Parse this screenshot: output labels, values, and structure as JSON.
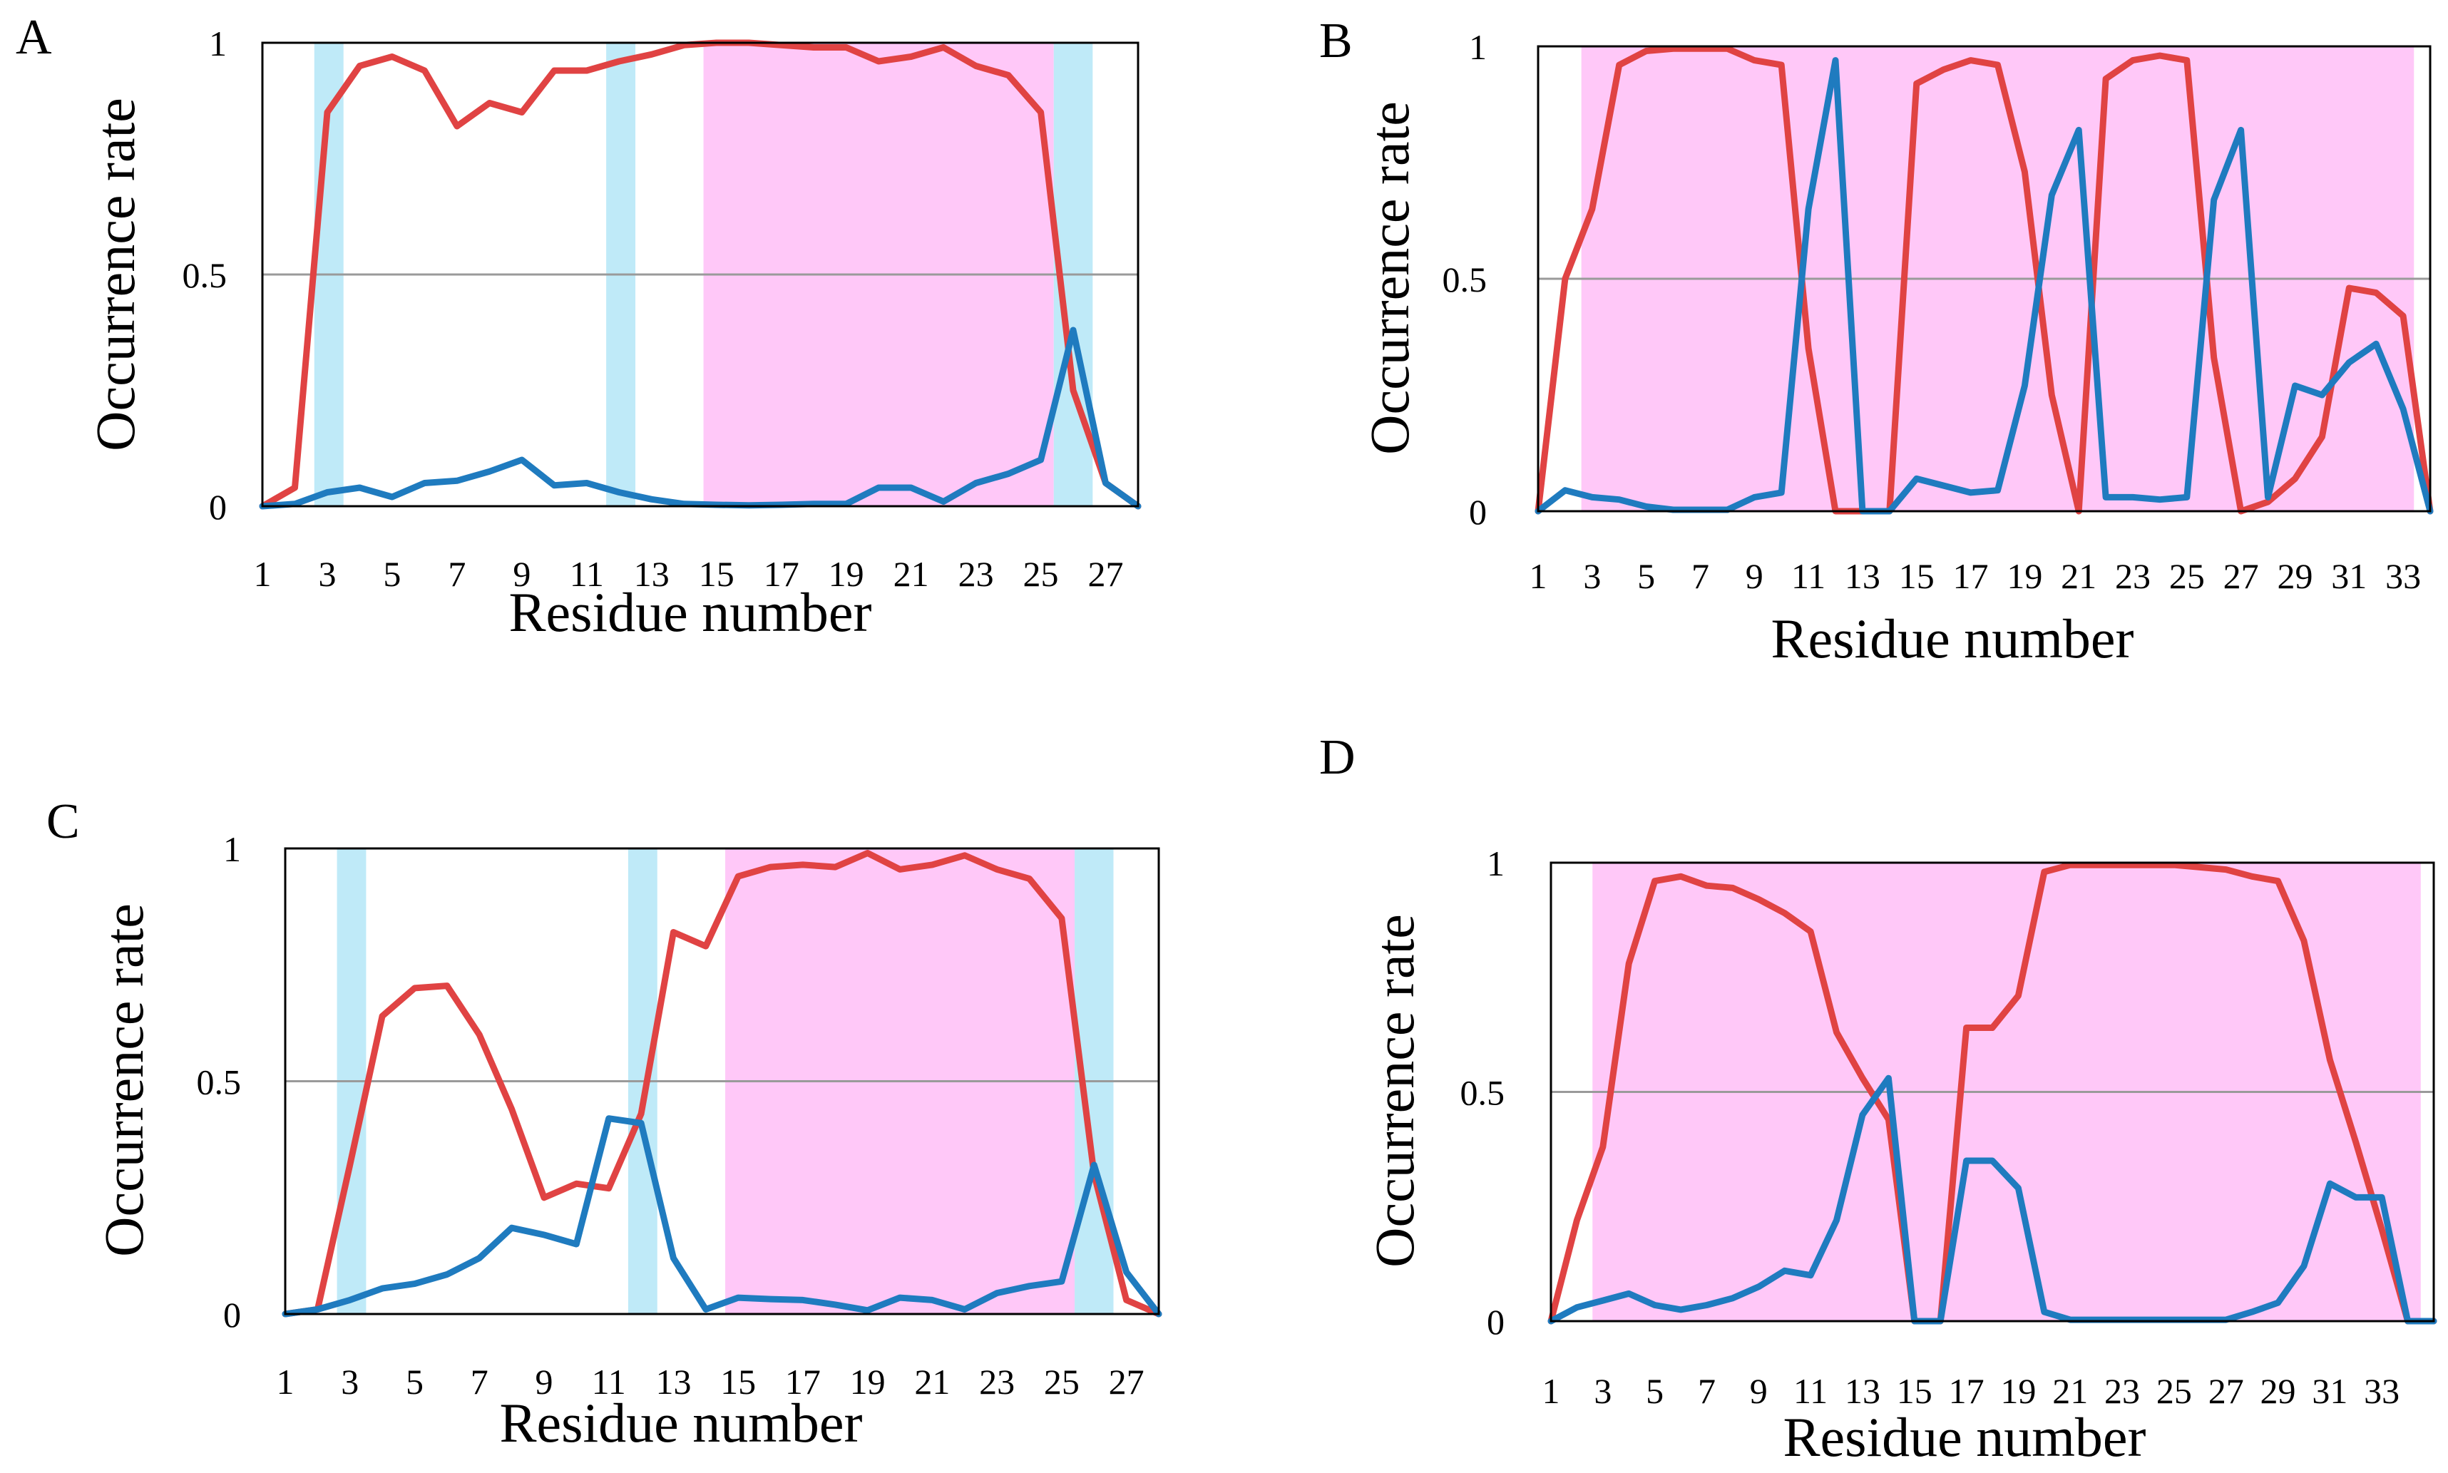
{
  "figure": {
    "colors": {
      "red_series": "#e04343",
      "blue_series": "#1f7bbf",
      "pink_band": "#ffc8f8",
      "cyan_band": "#bfeaf8",
      "gridline": "#9a9a9a",
      "frame": "#000000"
    }
  },
  "chart_data": [
    {
      "panel": "A",
      "type": "line",
      "title": "",
      "xlabel": "Residue number",
      "ylabel": "Occurrence rate",
      "x_range": [
        1,
        28
      ],
      "ylim": [
        0,
        1
      ],
      "yticks": [
        0,
        0.5,
        1
      ],
      "ytick_labels": [
        "0",
        "0.5",
        "1"
      ],
      "xticks": [
        1,
        3,
        5,
        7,
        9,
        11,
        13,
        15,
        17,
        19,
        21,
        23,
        25,
        27
      ],
      "gridlines_at": [
        0.5
      ],
      "bands": [
        {
          "color": "cyan",
          "from": 2.6,
          "to": 3.5
        },
        {
          "color": "cyan",
          "from": 11.6,
          "to": 12.5
        },
        {
          "color": "pink",
          "from": 14.6,
          "to": 25.4
        },
        {
          "color": "cyan",
          "from": 25.4,
          "to": 26.6
        }
      ],
      "series": [
        {
          "name": "red",
          "color": "red_series",
          "values": [
            0.0,
            0.04,
            0.85,
            0.95,
            0.97,
            0.94,
            0.82,
            0.87,
            0.85,
            0.94,
            0.94,
            0.96,
            0.975,
            0.995,
            1.0,
            1.0,
            0.995,
            0.99,
            0.99,
            0.96,
            0.97,
            0.99,
            0.95,
            0.93,
            0.85,
            0.25,
            0.05,
            0.0
          ]
        },
        {
          "name": "blue",
          "color": "blue_series",
          "values": [
            0.0,
            0.005,
            0.03,
            0.04,
            0.02,
            0.05,
            0.055,
            0.075,
            0.1,
            0.045,
            0.05,
            0.03,
            0.015,
            0.005,
            0.003,
            0.002,
            0.003,
            0.005,
            0.005,
            0.04,
            0.04,
            0.01,
            0.05,
            0.07,
            0.1,
            0.38,
            0.05,
            0.0
          ]
        }
      ]
    },
    {
      "panel": "B",
      "type": "line",
      "title": "",
      "xlabel": "Residue number",
      "ylabel": "Occurrence rate",
      "x_range": [
        1,
        34
      ],
      "ylim": [
        0,
        1
      ],
      "yticks": [
        0,
        0.5,
        1
      ],
      "ytick_labels": [
        "0",
        "0.5",
        "1"
      ],
      "xticks": [
        1,
        3,
        5,
        7,
        9,
        11,
        13,
        15,
        17,
        19,
        21,
        23,
        25,
        27,
        29,
        31,
        33
      ],
      "gridlines_at": [
        0.5
      ],
      "bands": [
        {
          "color": "pink",
          "from": 2.6,
          "to": 33.4
        }
      ],
      "series": [
        {
          "name": "red",
          "color": "red_series",
          "values": [
            0.0,
            0.5,
            0.65,
            0.96,
            0.99,
            0.995,
            0.995,
            0.995,
            0.97,
            0.96,
            0.35,
            0.0,
            0.0,
            0.0,
            0.92,
            0.95,
            0.97,
            0.96,
            0.73,
            0.25,
            0.0,
            0.93,
            0.97,
            0.98,
            0.97,
            0.33,
            0.0,
            0.02,
            0.07,
            0.16,
            0.48,
            0.47,
            0.42,
            0.0
          ]
        },
        {
          "name": "blue",
          "color": "blue_series",
          "values": [
            0.0,
            0.045,
            0.03,
            0.025,
            0.01,
            0.003,
            0.003,
            0.003,
            0.03,
            0.04,
            0.65,
            0.97,
            0.0,
            0.0,
            0.07,
            0.055,
            0.04,
            0.045,
            0.27,
            0.68,
            0.82,
            0.03,
            0.03,
            0.025,
            0.03,
            0.67,
            0.82,
            0.03,
            0.27,
            0.25,
            0.32,
            0.36,
            0.22,
            0.0
          ]
        }
      ]
    },
    {
      "panel": "C",
      "type": "line",
      "title": "",
      "xlabel": "Residue number",
      "ylabel": "Occurrence rate",
      "x_range": [
        1,
        28
      ],
      "ylim": [
        0,
        1
      ],
      "yticks": [
        0,
        0.5,
        1
      ],
      "ytick_labels": [
        "0",
        "0.5",
        "1"
      ],
      "xticks": [
        1,
        3,
        5,
        7,
        9,
        11,
        13,
        15,
        17,
        19,
        21,
        23,
        25,
        27
      ],
      "gridlines_at": [
        0.5
      ],
      "bands": [
        {
          "color": "cyan",
          "from": 2.6,
          "to": 3.5
        },
        {
          "color": "cyan",
          "from": 11.6,
          "to": 12.5
        },
        {
          "color": "pink",
          "from": 14.6,
          "to": 25.4
        },
        {
          "color": "cyan",
          "from": 25.4,
          "to": 26.6
        }
      ],
      "series": [
        {
          "name": "red",
          "color": "red_series",
          "values": [
            0.0,
            0.01,
            0.32,
            0.64,
            0.7,
            0.705,
            0.6,
            0.44,
            0.25,
            0.28,
            0.27,
            0.43,
            0.82,
            0.79,
            0.94,
            0.96,
            0.965,
            0.96,
            0.99,
            0.955,
            0.965,
            0.985,
            0.955,
            0.935,
            0.85,
            0.3,
            0.03,
            0.0
          ]
        },
        {
          "name": "blue",
          "color": "blue_series",
          "values": [
            0.0,
            0.01,
            0.03,
            0.055,
            0.065,
            0.085,
            0.12,
            0.185,
            0.17,
            0.15,
            0.42,
            0.41,
            0.12,
            0.01,
            0.035,
            0.032,
            0.03,
            0.02,
            0.008,
            0.035,
            0.03,
            0.01,
            0.045,
            0.06,
            0.07,
            0.32,
            0.09,
            0.0
          ]
        }
      ]
    },
    {
      "panel": "D",
      "type": "line",
      "title": "",
      "xlabel": "Residue number",
      "ylabel": "Occurrence rate",
      "x_range": [
        1,
        35
      ],
      "ylim": [
        0,
        1
      ],
      "yticks": [
        0,
        0.5,
        1
      ],
      "ytick_labels": [
        "0",
        "0.5",
        "1"
      ],
      "xticks": [
        1,
        3,
        5,
        7,
        9,
        11,
        13,
        15,
        17,
        19,
        21,
        23,
        25,
        27,
        29,
        31,
        33
      ],
      "gridlines_at": [
        0.5
      ],
      "bands": [
        {
          "color": "pink",
          "from": 2.6,
          "to": 34.5
        }
      ],
      "series": [
        {
          "name": "red",
          "color": "red_series",
          "values": [
            0.0,
            0.22,
            0.38,
            0.78,
            0.96,
            0.97,
            0.95,
            0.945,
            0.92,
            0.89,
            0.85,
            0.63,
            0.53,
            0.44,
            0.0,
            0.0,
            0.64,
            0.64,
            0.71,
            0.98,
            0.995,
            0.995,
            0.995,
            0.995,
            0.995,
            0.99,
            0.985,
            0.97,
            0.96,
            0.83,
            0.57,
            0.39,
            0.2,
            0.0,
            0.0
          ]
        },
        {
          "name": "blue",
          "color": "blue_series",
          "values": [
            0.0,
            0.03,
            0.045,
            0.06,
            0.035,
            0.025,
            0.035,
            0.05,
            0.075,
            0.11,
            0.1,
            0.22,
            0.45,
            0.53,
            0.0,
            0.0,
            0.35,
            0.35,
            0.29,
            0.02,
            0.003,
            0.003,
            0.003,
            0.003,
            0.003,
            0.003,
            0.003,
            0.02,
            0.04,
            0.12,
            0.3,
            0.27,
            0.27,
            0.0,
            0.0
          ]
        }
      ]
    }
  ]
}
